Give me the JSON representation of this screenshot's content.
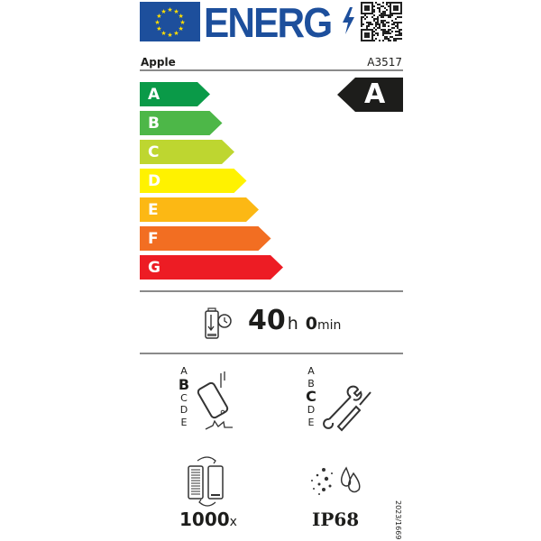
{
  "header": {
    "logo_text": "ENERG",
    "brand": "Apple",
    "model": "A3517"
  },
  "scale": {
    "classes": [
      {
        "letter": "A",
        "color": "#0a9a48"
      },
      {
        "letter": "B",
        "color": "#4db748"
      },
      {
        "letter": "C",
        "color": "#bed630"
      },
      {
        "letter": "D",
        "color": "#fff200"
      },
      {
        "letter": "E",
        "color": "#fcb814"
      },
      {
        "letter": "F",
        "color": "#f26e22"
      },
      {
        "letter": "G",
        "color": "#ed1c24"
      }
    ],
    "rating": "A"
  },
  "battery_endurance": {
    "hours": "40",
    "hours_unit": "h",
    "minutes": "0",
    "minutes_unit": "min"
  },
  "drop_resistance": {
    "classes": [
      "A",
      "B",
      "C",
      "D",
      "E"
    ],
    "selected": "B",
    "icon": "falling-phone-icon"
  },
  "repairability": {
    "classes": [
      "A",
      "B",
      "C",
      "D",
      "E"
    ],
    "selected": "C",
    "icon": "wrench-screwdriver-icon"
  },
  "battery_cycles": {
    "value": "1000",
    "unit": "x"
  },
  "ingress_protection": {
    "value": "IP68"
  },
  "regulation": "2023/1669"
}
